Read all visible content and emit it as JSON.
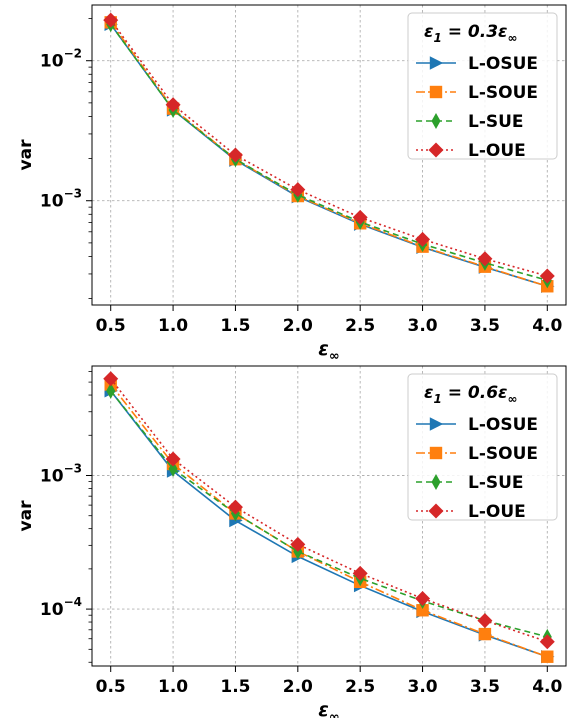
{
  "chart_data": [
    {
      "type": "line",
      "yscale": "log",
      "ylabel": "var",
      "xlabel": "ε∞",
      "x": [
        0.5,
        1.0,
        1.5,
        2.0,
        2.5,
        3.0,
        3.5,
        4.0
      ],
      "xlim": [
        0.35,
        4.15
      ],
      "ylim": [
        0.00018,
        0.025
      ],
      "yticks": [
        0.001,
        0.01
      ],
      "ytick_labels": [
        {
          "base": "10",
          "exp": "−3"
        },
        {
          "base": "10",
          "exp": "−2"
        }
      ],
      "xtick_labels": [
        "0.5",
        "1.0",
        "1.5",
        "2.0",
        "2.5",
        "3.0",
        "3.5",
        "4.0"
      ],
      "grid": true,
      "legend": {
        "placement": "top-right",
        "title": {
          "prefix": "ε",
          "sub": "1",
          "rest": " = 0.3ε",
          "sub2": "∞"
        }
      },
      "series": [
        {
          "name": "L-OSUE",
          "color": "#1f77b4",
          "marker": "triangle-right",
          "dash": "",
          "values": [
            0.0182,
            0.00445,
            0.00195,
            0.00107,
            0.00068,
            0.000465,
            0.000335,
            0.000245
          ]
        },
        {
          "name": "L-SOUE",
          "color": "#ff7f0e",
          "marker": "square",
          "dash": "9,3,2,3",
          "values": [
            0.0188,
            0.00455,
            0.00198,
            0.00108,
            0.00069,
            0.00047,
            0.000338,
            0.000245
          ]
        },
        {
          "name": "L-SUE",
          "color": "#2ca02c",
          "marker": "diamond-thin",
          "dash": "6,4",
          "values": [
            0.0182,
            0.00445,
            0.00198,
            0.0011,
            0.000705,
            0.00049,
            0.00036,
            0.00027
          ]
        },
        {
          "name": "L-OUE",
          "color": "#d62728",
          "marker": "diamond",
          "dash": "2,3",
          "values": [
            0.0195,
            0.00485,
            0.00212,
            0.0012,
            0.00076,
            0.00053,
            0.000385,
            0.00029
          ]
        }
      ]
    },
    {
      "type": "line",
      "yscale": "log",
      "ylabel": "var",
      "xlabel": "ε∞",
      "x": [
        0.5,
        1.0,
        1.5,
        2.0,
        2.5,
        3.0,
        3.5,
        4.0
      ],
      "xlim": [
        0.35,
        4.15
      ],
      "ylim": [
        3.75e-05,
        0.0066
      ],
      "yticks": [
        0.0001,
        0.001
      ],
      "ytick_labels": [
        {
          "base": "10",
          "exp": "−4"
        },
        {
          "base": "10",
          "exp": "−3"
        }
      ],
      "xtick_labels": [
        "0.5",
        "1.0",
        "1.5",
        "2.0",
        "2.5",
        "3.0",
        "3.5",
        "4.0"
      ],
      "grid": true,
      "legend": {
        "placement": "top-right",
        "title": {
          "prefix": "ε",
          "sub": "1",
          "rest": " = 0.6ε",
          "sub2": "∞"
        }
      },
      "series": [
        {
          "name": "L-OSUE",
          "color": "#1f77b4",
          "marker": "triangle-right",
          "dash": "",
          "values": [
            0.0043,
            0.00108,
            0.00046,
            0.000248,
            0.00015,
            9.6e-05,
            6.4e-05,
            4.4e-05
          ]
        },
        {
          "name": "L-SOUE",
          "color": "#ff7f0e",
          "marker": "square",
          "dash": "9,3,2,3",
          "values": [
            0.0048,
            0.00122,
            0.00052,
            0.00027,
            0.00016,
            9.8e-05,
            6.5e-05,
            4.4e-05
          ]
        },
        {
          "name": "L-SUE",
          "color": "#2ca02c",
          "marker": "diamond-thin",
          "dash": "6,4",
          "values": [
            0.0043,
            0.00112,
            0.00052,
            0.00027,
            0.00017,
            0.000115,
            8.2e-05,
            6.2e-05
          ]
        },
        {
          "name": "L-OUE",
          "color": "#d62728",
          "marker": "diamond",
          "dash": "2,3",
          "values": [
            0.0053,
            0.00133,
            0.00058,
            0.000305,
            0.000185,
            0.00012,
            8.2e-05,
            5.7e-05
          ]
        }
      ]
    }
  ]
}
